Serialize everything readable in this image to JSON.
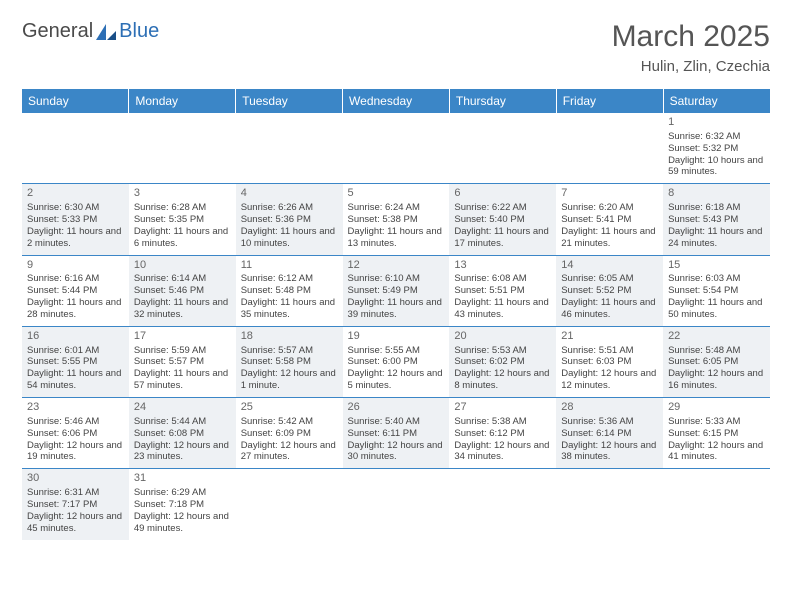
{
  "logo": {
    "text1": "General",
    "text2": "Blue"
  },
  "title": "March 2025",
  "location": "Hulin, Zlin, Czechia",
  "colors": {
    "header_bg": "#3b86c7",
    "header_text": "#ffffff",
    "row_border": "#3b86c7",
    "alt_cell_bg": "#eef1f4",
    "plain_cell_bg": "#ffffff",
    "text": "#444444",
    "title_text": "#555555",
    "logo_gray": "#4a4a4a",
    "logo_blue": "#2d6fb5"
  },
  "typography": {
    "title_fontsize": 30,
    "location_fontsize": 15,
    "dayhead_fontsize": 12,
    "cell_fontsize": 9.5,
    "daynum_fontsize": 11
  },
  "day_headers": [
    "Sunday",
    "Monday",
    "Tuesday",
    "Wednesday",
    "Thursday",
    "Friday",
    "Saturday"
  ],
  "weeks": [
    [
      {
        "blank": true
      },
      {
        "blank": true
      },
      {
        "blank": true
      },
      {
        "blank": true
      },
      {
        "blank": true
      },
      {
        "blank": true
      },
      {
        "n": "1",
        "sr": "Sunrise: 6:32 AM",
        "ss": "Sunset: 5:32 PM",
        "dl": "Daylight: 10 hours and 59 minutes.",
        "alt": false
      }
    ],
    [
      {
        "n": "2",
        "sr": "Sunrise: 6:30 AM",
        "ss": "Sunset: 5:33 PM",
        "dl": "Daylight: 11 hours and 2 minutes.",
        "alt": true
      },
      {
        "n": "3",
        "sr": "Sunrise: 6:28 AM",
        "ss": "Sunset: 5:35 PM",
        "dl": "Daylight: 11 hours and 6 minutes.",
        "alt": false
      },
      {
        "n": "4",
        "sr": "Sunrise: 6:26 AM",
        "ss": "Sunset: 5:36 PM",
        "dl": "Daylight: 11 hours and 10 minutes.",
        "alt": true
      },
      {
        "n": "5",
        "sr": "Sunrise: 6:24 AM",
        "ss": "Sunset: 5:38 PM",
        "dl": "Daylight: 11 hours and 13 minutes.",
        "alt": false
      },
      {
        "n": "6",
        "sr": "Sunrise: 6:22 AM",
        "ss": "Sunset: 5:40 PM",
        "dl": "Daylight: 11 hours and 17 minutes.",
        "alt": true
      },
      {
        "n": "7",
        "sr": "Sunrise: 6:20 AM",
        "ss": "Sunset: 5:41 PM",
        "dl": "Daylight: 11 hours and 21 minutes.",
        "alt": false
      },
      {
        "n": "8",
        "sr": "Sunrise: 6:18 AM",
        "ss": "Sunset: 5:43 PM",
        "dl": "Daylight: 11 hours and 24 minutes.",
        "alt": true
      }
    ],
    [
      {
        "n": "9",
        "sr": "Sunrise: 6:16 AM",
        "ss": "Sunset: 5:44 PM",
        "dl": "Daylight: 11 hours and 28 minutes.",
        "alt": false
      },
      {
        "n": "10",
        "sr": "Sunrise: 6:14 AM",
        "ss": "Sunset: 5:46 PM",
        "dl": "Daylight: 11 hours and 32 minutes.",
        "alt": true
      },
      {
        "n": "11",
        "sr": "Sunrise: 6:12 AM",
        "ss": "Sunset: 5:48 PM",
        "dl": "Daylight: 11 hours and 35 minutes.",
        "alt": false
      },
      {
        "n": "12",
        "sr": "Sunrise: 6:10 AM",
        "ss": "Sunset: 5:49 PM",
        "dl": "Daylight: 11 hours and 39 minutes.",
        "alt": true
      },
      {
        "n": "13",
        "sr": "Sunrise: 6:08 AM",
        "ss": "Sunset: 5:51 PM",
        "dl": "Daylight: 11 hours and 43 minutes.",
        "alt": false
      },
      {
        "n": "14",
        "sr": "Sunrise: 6:05 AM",
        "ss": "Sunset: 5:52 PM",
        "dl": "Daylight: 11 hours and 46 minutes.",
        "alt": true
      },
      {
        "n": "15",
        "sr": "Sunrise: 6:03 AM",
        "ss": "Sunset: 5:54 PM",
        "dl": "Daylight: 11 hours and 50 minutes.",
        "alt": false
      }
    ],
    [
      {
        "n": "16",
        "sr": "Sunrise: 6:01 AM",
        "ss": "Sunset: 5:55 PM",
        "dl": "Daylight: 11 hours and 54 minutes.",
        "alt": true
      },
      {
        "n": "17",
        "sr": "Sunrise: 5:59 AM",
        "ss": "Sunset: 5:57 PM",
        "dl": "Daylight: 11 hours and 57 minutes.",
        "alt": false
      },
      {
        "n": "18",
        "sr": "Sunrise: 5:57 AM",
        "ss": "Sunset: 5:58 PM",
        "dl": "Daylight: 12 hours and 1 minute.",
        "alt": true
      },
      {
        "n": "19",
        "sr": "Sunrise: 5:55 AM",
        "ss": "Sunset: 6:00 PM",
        "dl": "Daylight: 12 hours and 5 minutes.",
        "alt": false
      },
      {
        "n": "20",
        "sr": "Sunrise: 5:53 AM",
        "ss": "Sunset: 6:02 PM",
        "dl": "Daylight: 12 hours and 8 minutes.",
        "alt": true
      },
      {
        "n": "21",
        "sr": "Sunrise: 5:51 AM",
        "ss": "Sunset: 6:03 PM",
        "dl": "Daylight: 12 hours and 12 minutes.",
        "alt": false
      },
      {
        "n": "22",
        "sr": "Sunrise: 5:48 AM",
        "ss": "Sunset: 6:05 PM",
        "dl": "Daylight: 12 hours and 16 minutes.",
        "alt": true
      }
    ],
    [
      {
        "n": "23",
        "sr": "Sunrise: 5:46 AM",
        "ss": "Sunset: 6:06 PM",
        "dl": "Daylight: 12 hours and 19 minutes.",
        "alt": false
      },
      {
        "n": "24",
        "sr": "Sunrise: 5:44 AM",
        "ss": "Sunset: 6:08 PM",
        "dl": "Daylight: 12 hours and 23 minutes.",
        "alt": true
      },
      {
        "n": "25",
        "sr": "Sunrise: 5:42 AM",
        "ss": "Sunset: 6:09 PM",
        "dl": "Daylight: 12 hours and 27 minutes.",
        "alt": false
      },
      {
        "n": "26",
        "sr": "Sunrise: 5:40 AM",
        "ss": "Sunset: 6:11 PM",
        "dl": "Daylight: 12 hours and 30 minutes.",
        "alt": true
      },
      {
        "n": "27",
        "sr": "Sunrise: 5:38 AM",
        "ss": "Sunset: 6:12 PM",
        "dl": "Daylight: 12 hours and 34 minutes.",
        "alt": false
      },
      {
        "n": "28",
        "sr": "Sunrise: 5:36 AM",
        "ss": "Sunset: 6:14 PM",
        "dl": "Daylight: 12 hours and 38 minutes.",
        "alt": true
      },
      {
        "n": "29",
        "sr": "Sunrise: 5:33 AM",
        "ss": "Sunset: 6:15 PM",
        "dl": "Daylight: 12 hours and 41 minutes.",
        "alt": false
      }
    ],
    [
      {
        "n": "30",
        "sr": "Sunrise: 6:31 AM",
        "ss": "Sunset: 7:17 PM",
        "dl": "Daylight: 12 hours and 45 minutes.",
        "alt": true
      },
      {
        "n": "31",
        "sr": "Sunrise: 6:29 AM",
        "ss": "Sunset: 7:18 PM",
        "dl": "Daylight: 12 hours and 49 minutes.",
        "alt": false
      },
      {
        "blank": true
      },
      {
        "blank": true
      },
      {
        "blank": true
      },
      {
        "blank": true
      },
      {
        "blank": true
      }
    ]
  ]
}
